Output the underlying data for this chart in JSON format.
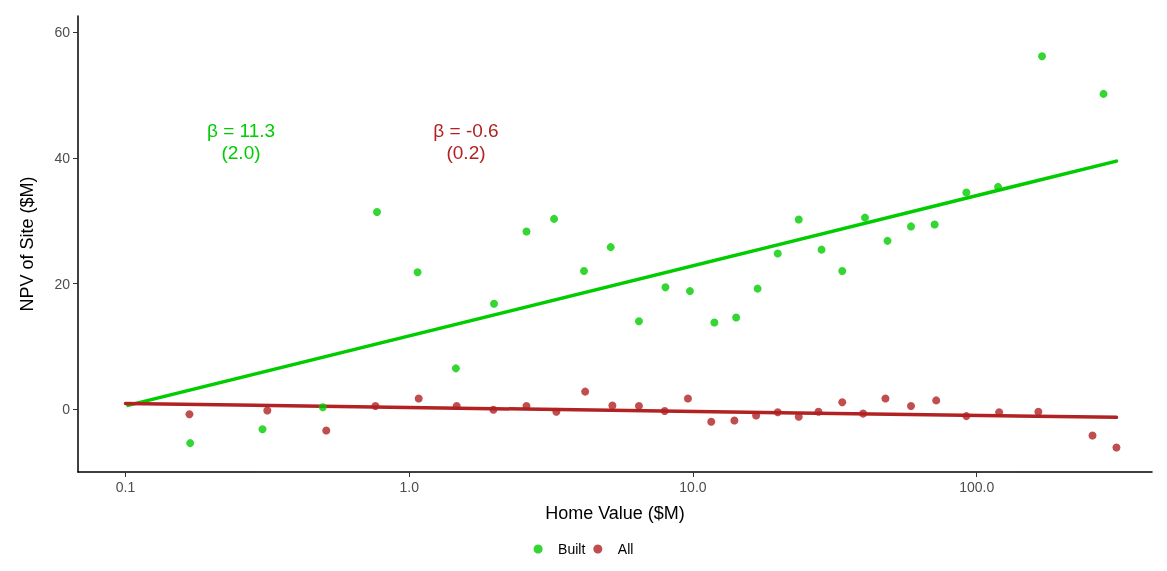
{
  "chart_data": {
    "type": "scatter",
    "xlabel": "Home Value ($M)",
    "ylabel": "NPV of Site ($M)",
    "log": "x",
    "xlim": [
      0.068,
      415
    ],
    "xticks": [
      {
        "value": 0.1,
        "label": "0.1"
      },
      {
        "value": 1,
        "label": "1.0"
      },
      {
        "value": 10,
        "label": "10.0"
      },
      {
        "value": 100,
        "label": "100.0"
      }
    ],
    "ylim": [
      -10,
      62.6
    ],
    "yticks": [
      0,
      20,
      40,
      60
    ],
    "grid": false,
    "legend": "bottom",
    "marker": "circle",
    "annotations": [
      "β = 11.3\n(2.0)",
      "β = -0.6\n(0.2)"
    ],
    "series": [
      {
        "name": "Built",
        "color": "#00cc00",
        "x": [
          0.169,
          0.304,
          0.496,
          0.77,
          1.07,
          1.46,
          1.99,
          2.59,
          3.24,
          4.13,
          5.13,
          6.45,
          8.0,
          9.76,
          11.9,
          14.2,
          16.9,
          19.9,
          23.6,
          28.4,
          33.6,
          40.4,
          48.5,
          58.7,
          71.1,
          92,
          119,
          170,
          280
        ],
        "values": [
          -5.4,
          -3.2,
          0.3,
          31.4,
          21.8,
          6.5,
          16.8,
          28.3,
          30.3,
          22.0,
          25.8,
          14.0,
          19.4,
          18.8,
          13.8,
          14.6,
          19.2,
          24.8,
          30.2,
          25.4,
          22.0,
          30.5,
          26.8,
          29.1,
          29.4,
          34.5,
          35.4,
          56.2,
          50.2
        ]
      },
      {
        "name": "All",
        "color": "#b22222",
        "x": [
          0.168,
          0.316,
          0.51,
          0.76,
          1.08,
          1.47,
          1.98,
          2.59,
          3.3,
          4.17,
          5.2,
          6.45,
          7.95,
          9.6,
          11.6,
          14.0,
          16.7,
          19.9,
          23.6,
          27.7,
          33.6,
          39.8,
          47.7,
          58.7,
          72,
          92,
          120,
          165,
          256,
          311
        ],
        "values": [
          -0.8,
          -0.2,
          -3.4,
          0.5,
          1.7,
          0.5,
          -0.1,
          0.5,
          -0.4,
          2.8,
          0.6,
          0.5,
          -0.3,
          1.7,
          -2.0,
          -1.8,
          -1.0,
          -0.5,
          -1.2,
          -0.4,
          1.1,
          -0.7,
          1.7,
          0.5,
          1.4,
          -1.1,
          -0.5,
          -0.4,
          -4.2,
          -6.1
        ]
      },
      {
        "type": "line",
        "color": "#00cc00",
        "marker": "none",
        "x": [
          0.102,
          311
        ],
        "values": [
          0.6,
          39.5
        ]
      },
      {
        "type": "line",
        "color": "#b22222",
        "marker": "none",
        "x": [
          0.1,
          311
        ],
        "values": [
          0.9,
          -1.3
        ]
      }
    ]
  }
}
